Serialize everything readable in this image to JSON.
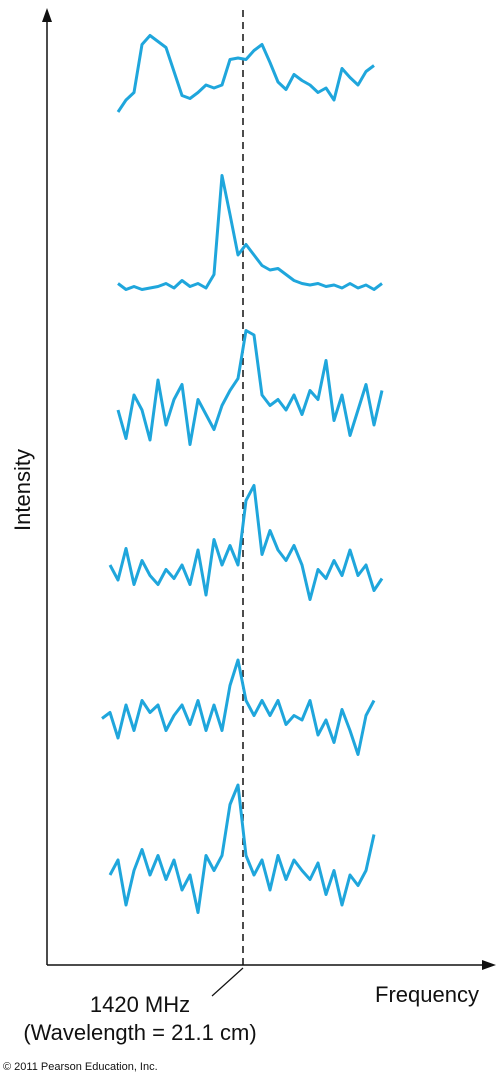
{
  "figure": {
    "y_label": "Intensity",
    "x_label": "Frequency",
    "marker_label": [
      "1420 MHz",
      "(Wavelength = 21.1 cm)"
    ],
    "credit": "© 2011 Pearson Education, Inc."
  },
  "chart_data": [
    {
      "type": "line",
      "color": "#1fa6dc",
      "xlim": [
        0,
        443
      ],
      "ylim": [
        0,
        100
      ],
      "x": [
        55,
        63,
        71,
        79,
        87,
        95,
        103,
        111,
        119,
        127,
        135,
        143,
        151,
        159,
        167,
        175,
        183,
        191,
        199,
        207,
        215,
        223,
        231,
        239,
        247,
        255,
        263,
        271,
        279,
        287,
        295,
        303,
        311,
        319,
        327,
        335
      ],
      "values": [
        null,
        null,
        32,
        40,
        45,
        77,
        83,
        79,
        75,
        59,
        43,
        41,
        45,
        50,
        48,
        50,
        67,
        68,
        67,
        73,
        77,
        65,
        52,
        47,
        57,
        53,
        50,
        45,
        48,
        40,
        61,
        55,
        50,
        59,
        63,
        null
      ]
    },
    {
      "type": "line",
      "color": "#1fa6dc",
      "xlim": [
        0,
        443
      ],
      "ylim": [
        0,
        100
      ],
      "x": [
        55,
        63,
        71,
        79,
        87,
        95,
        103,
        111,
        119,
        127,
        135,
        143,
        151,
        159,
        167,
        175,
        183,
        191,
        199,
        207,
        215,
        223,
        231,
        239,
        247,
        255,
        263,
        271,
        279,
        287,
        295,
        303,
        311,
        319,
        327,
        335
      ],
      "values": [
        null,
        null,
        21,
        17,
        19,
        17,
        18,
        19,
        21,
        18,
        23,
        19,
        21,
        18,
        27,
        93,
        67,
        40,
        47,
        40,
        33,
        30,
        31,
        27,
        23,
        21,
        20,
        21,
        19,
        20,
        18,
        21,
        18,
        20,
        17,
        21
      ]
    },
    {
      "type": "line",
      "color": "#1fa6dc",
      "xlim": [
        0,
        443
      ],
      "ylim": [
        0,
        100
      ],
      "x": [
        55,
        63,
        71,
        79,
        87,
        95,
        103,
        111,
        119,
        127,
        135,
        143,
        151,
        159,
        167,
        175,
        183,
        191,
        199,
        207,
        215,
        223,
        231,
        239,
        247,
        255,
        263,
        271,
        279,
        287,
        295,
        303,
        311,
        319,
        327,
        335
      ],
      "values": [
        null,
        null,
        40,
        21,
        50,
        40,
        20,
        60,
        30,
        47,
        57,
        17,
        47,
        37,
        27,
        43,
        53,
        61,
        93,
        90,
        50,
        43,
        47,
        40,
        50,
        37,
        53,
        47,
        73,
        33,
        50,
        23,
        40,
        57,
        30,
        53
      ]
    },
    {
      "type": "line",
      "color": "#1fa6dc",
      "xlim": [
        0,
        443
      ],
      "ylim": [
        0,
        100
      ],
      "x": [
        55,
        63,
        71,
        79,
        87,
        95,
        103,
        111,
        119,
        127,
        135,
        143,
        151,
        159,
        167,
        175,
        183,
        191,
        199,
        207,
        215,
        223,
        231,
        239,
        247,
        255,
        263,
        271,
        279,
        287,
        295,
        303,
        311,
        319,
        327,
        335
      ],
      "values": [
        null,
        40,
        30,
        51,
        27,
        43,
        33,
        27,
        37,
        31,
        40,
        27,
        50,
        20,
        57,
        40,
        53,
        40,
        83,
        93,
        47,
        63,
        50,
        43,
        53,
        40,
        17,
        37,
        31,
        43,
        33,
        50,
        33,
        40,
        23,
        31
      ]
    },
    {
      "type": "line",
      "color": "#1fa6dc",
      "xlim": [
        0,
        443
      ],
      "ylim": [
        0,
        100
      ],
      "x": [
        55,
        63,
        71,
        79,
        87,
        95,
        103,
        111,
        119,
        127,
        135,
        143,
        151,
        159,
        167,
        175,
        183,
        191,
        199,
        207,
        215,
        223,
        231,
        239,
        247,
        255,
        263,
        271,
        279,
        287,
        295,
        303,
        311,
        319,
        327,
        335
      ],
      "values": [
        41,
        45,
        28,
        50,
        33,
        53,
        45,
        50,
        33,
        43,
        50,
        37,
        53,
        33,
        50,
        33,
        63,
        80,
        53,
        43,
        53,
        43,
        53,
        37,
        43,
        40,
        53,
        30,
        40,
        25,
        47,
        33,
        17,
        43,
        53,
        null
      ]
    },
    {
      "type": "line",
      "color": "#1fa6dc",
      "xlim": [
        0,
        443
      ],
      "ylim": [
        0,
        100
      ],
      "x": [
        55,
        63,
        71,
        79,
        87,
        95,
        103,
        111,
        119,
        127,
        135,
        143,
        151,
        159,
        167,
        175,
        183,
        191,
        199,
        207,
        215,
        223,
        231,
        239,
        247,
        255,
        263,
        271,
        279,
        287,
        295,
        303,
        311,
        319,
        327,
        335
      ],
      "values": [
        null,
        40,
        50,
        20,
        43,
        57,
        40,
        53,
        37,
        50,
        30,
        40,
        15,
        53,
        43,
        53,
        87,
        100,
        53,
        40,
        50,
        30,
        53,
        37,
        50,
        43,
        37,
        48,
        27,
        43,
        20,
        40,
        33,
        43,
        67,
        null
      ]
    }
  ]
}
